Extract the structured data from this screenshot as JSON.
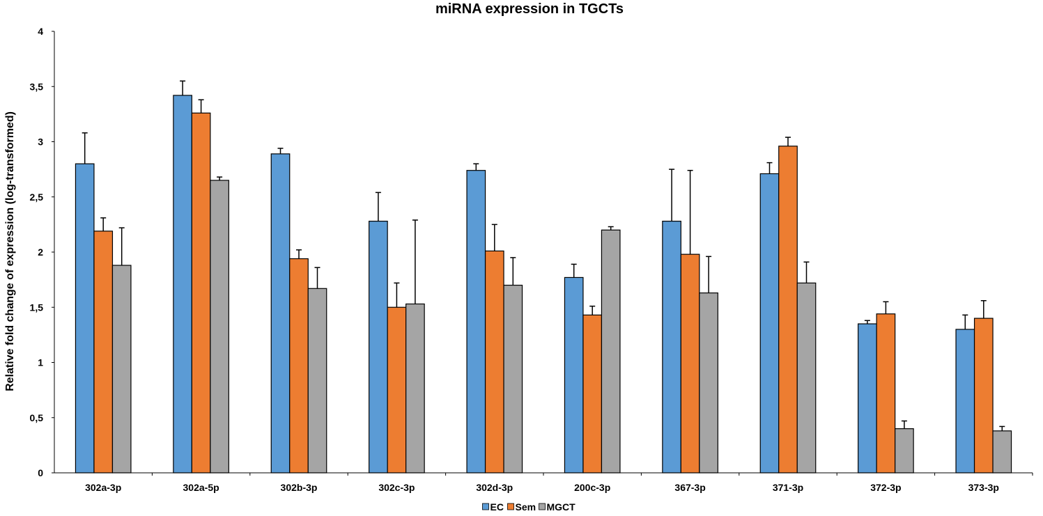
{
  "chart_data": {
    "type": "bar",
    "title": "miRNA expression in TGCTs",
    "xlabel": "",
    "ylabel": "Relative fold change of expression (log-transformed)",
    "ylim": [
      0,
      4
    ],
    "yticks": [
      "0",
      "0,5",
      "1",
      "1,5",
      "2",
      "2,5",
      "3",
      "3,5",
      "4"
    ],
    "ytick_values": [
      0,
      0.5,
      1,
      1.5,
      2,
      2.5,
      3,
      3.5,
      4
    ],
    "grid": false,
    "legend_position": "bottom",
    "categories": [
      "302a-3p",
      "302a-5p",
      "302b-3p",
      "302c-3p",
      "302d-3p",
      "200c-3p",
      "367-3p",
      "371-3p",
      "372-3p",
      "373-3p"
    ],
    "series": [
      {
        "name": "EC",
        "color": "#5b9bd5",
        "values": [
          2.8,
          3.42,
          2.89,
          2.28,
          2.74,
          1.77,
          2.28,
          2.71,
          1.35,
          1.3
        ],
        "errors": [
          0.28,
          0.13,
          0.05,
          0.26,
          0.06,
          0.12,
          0.47,
          0.1,
          0.03,
          0.13
        ]
      },
      {
        "name": "Sem",
        "color": "#ed7d31",
        "values": [
          2.19,
          3.26,
          1.94,
          1.5,
          2.01,
          1.43,
          1.98,
          2.96,
          1.44,
          1.4
        ],
        "errors": [
          0.12,
          0.12,
          0.08,
          0.22,
          0.24,
          0.08,
          0.76,
          0.08,
          0.11,
          0.16
        ]
      },
      {
        "name": "MGCT",
        "color": "#a5a5a5",
        "values": [
          1.88,
          2.65,
          1.67,
          1.53,
          1.7,
          2.2,
          1.63,
          1.72,
          0.4,
          0.38
        ],
        "errors": [
          0.34,
          0.03,
          0.19,
          0.76,
          0.25,
          0.03,
          0.33,
          0.19,
          0.07,
          0.04
        ]
      }
    ]
  }
}
